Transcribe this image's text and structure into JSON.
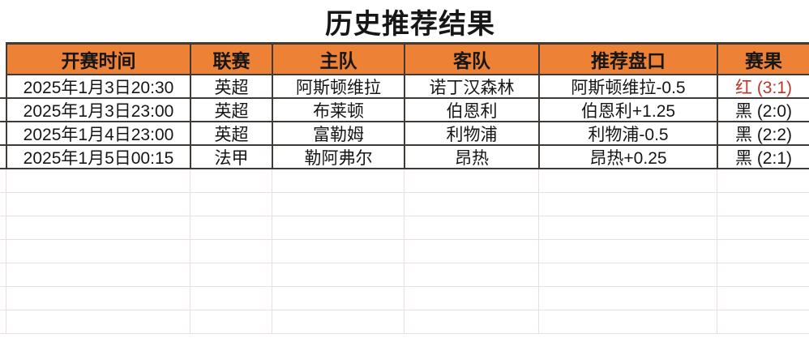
{
  "title": "历史推荐结果",
  "colors": {
    "header_bg": "#ed8236",
    "border_dark": "#403a36",
    "grid_light": "#eadfdd",
    "text_dark": "#161616",
    "result_red": "#c03428"
  },
  "table": {
    "columns": [
      {
        "label": "开赛时间"
      },
      {
        "label": "联赛"
      },
      {
        "label": "主队"
      },
      {
        "label": "客队"
      },
      {
        "label": "推荐盘口"
      },
      {
        "label": "赛果"
      }
    ],
    "rows": [
      {
        "time": "2025年1月3日20:30",
        "league": "英超",
        "home": "阿斯顿维拉",
        "away": "诺丁汉森林",
        "handicap": "阿斯顿维拉-0.5",
        "result": "红 (3:1)",
        "result_color": "#c03428"
      },
      {
        "time": "2025年1月3日23:00",
        "league": "英超",
        "home": "布莱顿",
        "away": "伯恩利",
        "handicap": "伯恩利+1.25",
        "result": "黑 (2:0)",
        "result_color": "#161616"
      },
      {
        "time": "2025年1月4日23:00",
        "league": "英超",
        "home": "富勒姆",
        "away": "利物浦",
        "handicap": "利物浦-0.5",
        "result": "黑 (2:2)",
        "result_color": "#161616"
      },
      {
        "time": "2025年1月5日00:15",
        "league": "法甲",
        "home": "勒阿弗尔",
        "away": "昂热",
        "handicap": "昂热+0.25",
        "result": "黑 (2:1)",
        "result_color": "#161616"
      }
    ]
  },
  "grid": {
    "empty_row_count": 7
  }
}
